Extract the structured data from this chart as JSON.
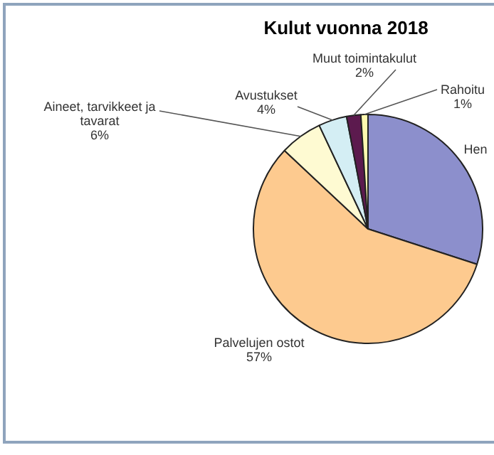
{
  "chart_data": {
    "type": "pie",
    "title": "Kulut vuonna 2018",
    "categories": [
      "Hen",
      "Palvelujen ostot",
      "Aineet, tarvikkeet ja tavarat",
      "Avustukset",
      "Muut toimintakulut",
      "Rahoitu"
    ],
    "values": [
      30,
      57,
      6,
      4,
      2,
      1
    ],
    "value_labels": [
      null,
      "57%",
      "6%",
      "4%",
      "2%",
      "1%"
    ],
    "colors": [
      "#8c8fcc",
      "#fdca8f",
      "#fefad2",
      "#d4eef4",
      "#5c1a4e",
      "#fef9b0"
    ],
    "legend": false
  }
}
